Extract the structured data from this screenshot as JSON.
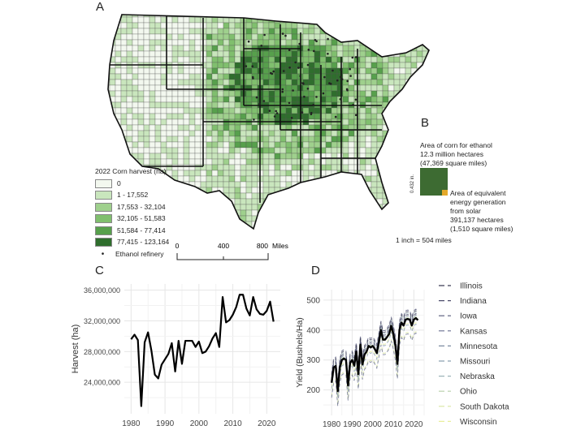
{
  "panels": {
    "a": "A",
    "b": "B",
    "c": "C",
    "d": "D"
  },
  "map_legend": {
    "title": "2022 Corn harvest (ha)",
    "classes": [
      {
        "label": "0",
        "color": "#f3f8ef"
      },
      {
        "label": "1 - 17,552",
        "color": "#c9e6bd"
      },
      {
        "label": "17,553 - 32,104",
        "color": "#9fd08d"
      },
      {
        "label": "32,105 - 51,583",
        "color": "#80bf6e"
      },
      {
        "label": "51,584 - 77,414",
        "color": "#57a04c"
      },
      {
        "label": "77,415 - 123,164",
        "color": "#2f6e2d"
      }
    ],
    "refinery_label": "Ethanol refinery"
  },
  "scale_bar": {
    "ticks": [
      "0",
      "400",
      "800"
    ],
    "unit": "Miles"
  },
  "panel_b": {
    "corn_text": [
      "Area of corn for ethanol",
      "12.3 million hectares",
      "(47,369 square miles)"
    ],
    "side_label": "0.432 in.",
    "solar_text": [
      "Area of equivalent",
      "energy generation",
      "from solar",
      "391,137 hectares",
      "(1,510 square miles)"
    ],
    "scale_note": "1 inch = 504 miles",
    "corn_color": "#3d6b32",
    "solar_color": "#e4a92b"
  },
  "chart_data": [
    {
      "type": "line",
      "ylabel": "Harvest (ha)",
      "xlabel": "",
      "xlim": [
        1978,
        2024
      ],
      "ylim": [
        19900000,
        36800000
      ],
      "xticks": [
        1980,
        1990,
        2000,
        2010,
        2020
      ],
      "yticks": [
        24000000,
        28000000,
        32000000,
        36000000
      ],
      "ytick_labels": [
        "24,000,000",
        "28,000,000",
        "32,000,000",
        "36,000,000"
      ],
      "grid": true,
      "x": [
        1980,
        1981,
        1982,
        1983,
        1984,
        1985,
        1986,
        1987,
        1988,
        1989,
        1990,
        1991,
        1992,
        1993,
        1994,
        1995,
        1996,
        1997,
        1998,
        1999,
        2000,
        2001,
        2002,
        2003,
        2004,
        2005,
        2006,
        2007,
        2008,
        2009,
        2010,
        2011,
        2012,
        2013,
        2014,
        2015,
        2016,
        2017,
        2018,
        2019,
        2020,
        2021,
        2022
      ],
      "values": [
        29600000,
        30200000,
        29500000,
        20900000,
        29200000,
        30500000,
        28100000,
        25000000,
        24500000,
        26300000,
        27000000,
        27700000,
        29100000,
        25400000,
        29400000,
        26400000,
        29400000,
        29400000,
        29400000,
        28600000,
        29300000,
        27800000,
        28000000,
        28700000,
        29700000,
        30400000,
        28600000,
        35100000,
        31800000,
        32100000,
        32800000,
        33800000,
        35400000,
        35400000,
        33600000,
        32700000,
        35100000,
        33500000,
        32900000,
        32800000,
        33300000,
        34500000,
        31900000
      ]
    },
    {
      "type": "line",
      "ylabel": "Yield (Bushels/Ha)",
      "xlabel": "",
      "xlim": [
        1976,
        2025
      ],
      "ylim": [
        115,
        535
      ],
      "xticks": [
        1980,
        1990,
        2000,
        2010,
        2020
      ],
      "yticks": [
        200,
        300,
        400,
        500
      ],
      "grid": true,
      "legend": "right",
      "x": [
        1980,
        1981,
        1982,
        1983,
        1984,
        1985,
        1986,
        1987,
        1988,
        1989,
        1990,
        1991,
        1992,
        1993,
        1994,
        1995,
        1996,
        1997,
        1998,
        1999,
        2000,
        2001,
        2002,
        2003,
        2004,
        2005,
        2006,
        2007,
        2008,
        2009,
        2010,
        2011,
        2012,
        2013,
        2014,
        2015,
        2016,
        2017,
        2018,
        2019,
        2020,
        2021,
        2022
      ],
      "mean": {
        "color": "#000000",
        "values": [
          224,
          275,
          280,
          196,
          275,
          300,
          305,
          300,
          215,
          290,
          300,
          281,
          328,
          253,
          351,
          285,
          318,
          328,
          347,
          342,
          347,
          337,
          323,
          360,
          400,
          368,
          368,
          377,
          387,
          414,
          387,
          350,
          287,
          400,
          425,
          415,
          435,
          437,
          435,
          415,
          435,
          440,
          433
        ]
      },
      "series": [
        {
          "name": "Illinois",
          "color": "#3b3b55",
          "values": [
            249,
            300,
            305,
            221,
            300,
            325,
            330,
            325,
            240,
            315,
            325,
            306,
            353,
            278,
            376,
            310,
            343,
            353,
            372,
            367,
            372,
            362,
            348,
            385,
            425,
            393,
            393,
            402,
            412,
            439,
            412,
            375,
            312,
            425,
            450,
            440,
            460,
            462,
            460,
            440,
            460,
            465,
            458
          ]
        },
        {
          "name": "Indiana",
          "color": "#4a4a6a",
          "values": [
            239,
            290,
            295,
            211,
            290,
            315,
            320,
            315,
            230,
            305,
            315,
            296,
            343,
            268,
            366,
            300,
            333,
            343,
            362,
            357,
            362,
            352,
            338,
            375,
            415,
            383,
            383,
            392,
            402,
            429,
            402,
            365,
            302,
            415,
            440,
            430,
            450,
            452,
            450,
            430,
            450,
            455,
            448
          ]
        },
        {
          "name": "Iowa",
          "color": "#55587a",
          "values": [
            254,
            305,
            310,
            226,
            305,
            330,
            335,
            330,
            245,
            320,
            330,
            311,
            358,
            283,
            381,
            315,
            348,
            358,
            377,
            372,
            377,
            367,
            353,
            390,
            430,
            398,
            398,
            407,
            417,
            444,
            417,
            380,
            317,
            430,
            455,
            445,
            465,
            467,
            465,
            445,
            465,
            470,
            463
          ]
        },
        {
          "name": "Kansas",
          "color": "#6a7090",
          "values": [
            174,
            225,
            230,
            146,
            225,
            250,
            255,
            250,
            165,
            240,
            250,
            231,
            278,
            203,
            301,
            235,
            268,
            278,
            297,
            292,
            297,
            287,
            273,
            310,
            350,
            318,
            318,
            327,
            337,
            364,
            337,
            300,
            237,
            350,
            375,
            365,
            385,
            387,
            385,
            365,
            385,
            390,
            383
          ]
        },
        {
          "name": "Minnesota",
          "color": "#7a8aa0",
          "values": [
            234,
            285,
            290,
            206,
            285,
            310,
            315,
            310,
            225,
            300,
            310,
            291,
            338,
            263,
            361,
            295,
            328,
            338,
            357,
            352,
            357,
            347,
            333,
            370,
            410,
            378,
            378,
            387,
            397,
            424,
            397,
            360,
            297,
            410,
            435,
            425,
            445,
            447,
            445,
            425,
            445,
            450,
            443
          ]
        },
        {
          "name": "Missouri",
          "color": "#8aa0b0",
          "values": [
            204,
            255,
            260,
            176,
            255,
            280,
            285,
            280,
            195,
            270,
            280,
            261,
            308,
            233,
            331,
            265,
            298,
            308,
            327,
            322,
            327,
            317,
            303,
            340,
            380,
            348,
            348,
            357,
            367,
            394,
            367,
            330,
            267,
            380,
            405,
            395,
            415,
            417,
            415,
            395,
            415,
            420,
            413
          ]
        },
        {
          "name": "Nebraska",
          "color": "#9cb3b8",
          "values": [
            244,
            295,
            300,
            216,
            295,
            320,
            325,
            320,
            235,
            310,
            320,
            301,
            348,
            273,
            371,
            305,
            338,
            348,
            367,
            362,
            367,
            357,
            343,
            380,
            420,
            388,
            388,
            397,
            407,
            434,
            407,
            370,
            307,
            420,
            445,
            435,
            455,
            457,
            455,
            435,
            455,
            460,
            453
          ]
        },
        {
          "name": "Ohio",
          "color": "#b7cfa8",
          "values": [
            229,
            280,
            285,
            201,
            280,
            305,
            310,
            305,
            220,
            295,
            305,
            286,
            333,
            258,
            356,
            290,
            323,
            333,
            352,
            347,
            352,
            342,
            328,
            365,
            405,
            373,
            373,
            382,
            392,
            419,
            392,
            355,
            292,
            405,
            430,
            420,
            440,
            442,
            440,
            420,
            440,
            445,
            438
          ]
        },
        {
          "name": "South Dakota",
          "color": "#d9e6a0",
          "values": [
            179,
            230,
            235,
            151,
            230,
            255,
            260,
            255,
            170,
            245,
            255,
            236,
            283,
            208,
            306,
            240,
            273,
            283,
            302,
            297,
            302,
            292,
            278,
            315,
            355,
            323,
            323,
            332,
            342,
            369,
            342,
            305,
            242,
            355,
            380,
            370,
            390,
            392,
            390,
            370,
            390,
            395,
            388
          ]
        },
        {
          "name": "Wisconsin",
          "color": "#e8ef9a",
          "values": [
            209,
            260,
            265,
            181,
            260,
            285,
            290,
            285,
            200,
            275,
            285,
            266,
            313,
            238,
            336,
            270,
            303,
            313,
            332,
            327,
            332,
            322,
            308,
            345,
            385,
            353,
            353,
            362,
            372,
            399,
            372,
            335,
            272,
            385,
            410,
            400,
            420,
            422,
            420,
            400,
            420,
            425,
            418
          ]
        }
      ]
    }
  ]
}
